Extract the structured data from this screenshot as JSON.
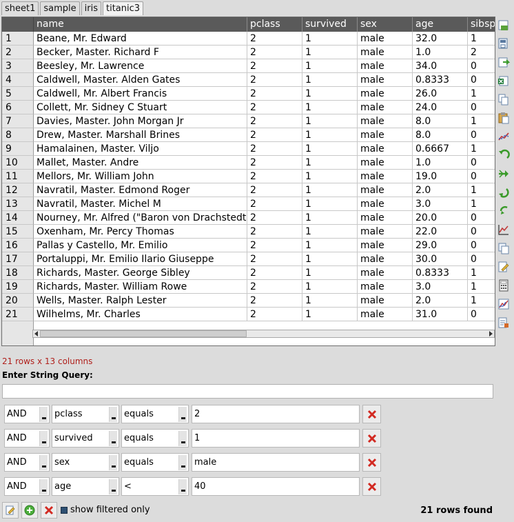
{
  "tabs": [
    "sheet1",
    "sample",
    "iris",
    "titanic3"
  ],
  "active_tab": "titanic3",
  "table": {
    "columns": [
      "name",
      "pclass",
      "survived",
      "sex",
      "age",
      "sibsp"
    ],
    "rows": [
      [
        "1",
        "Beane, Mr. Edward",
        "2",
        "1",
        "male",
        "32.0",
        "1"
      ],
      [
        "2",
        "Becker, Master. Richard F",
        "2",
        "1",
        "male",
        "1.0",
        "2"
      ],
      [
        "3",
        "Beesley, Mr. Lawrence",
        "2",
        "1",
        "male",
        "34.0",
        "0"
      ],
      [
        "4",
        "Caldwell, Master. Alden Gates",
        "2",
        "1",
        "male",
        "0.8333",
        "0"
      ],
      [
        "5",
        "Caldwell, Mr. Albert Francis",
        "2",
        "1",
        "male",
        "26.0",
        "1"
      ],
      [
        "6",
        "Collett, Mr. Sidney C Stuart",
        "2",
        "1",
        "male",
        "24.0",
        "0"
      ],
      [
        "7",
        "Davies, Master. John Morgan Jr",
        "2",
        "1",
        "male",
        "8.0",
        "1"
      ],
      [
        "8",
        "Drew, Master. Marshall Brines",
        "2",
        "1",
        "male",
        "8.0",
        "0"
      ],
      [
        "9",
        "Hamalainen, Master. Viljo",
        "2",
        "1",
        "male",
        "0.6667",
        "1"
      ],
      [
        "10",
        "Mallet, Master. Andre",
        "2",
        "1",
        "male",
        "1.0",
        "0"
      ],
      [
        "11",
        "Mellors, Mr. William John",
        "2",
        "1",
        "male",
        "19.0",
        "0"
      ],
      [
        "12",
        "Navratil, Master. Edmond Roger",
        "2",
        "1",
        "male",
        "2.0",
        "1"
      ],
      [
        "13",
        "Navratil, Master. Michel M",
        "2",
        "1",
        "male",
        "3.0",
        "1"
      ],
      [
        "14",
        "Nourney, Mr. Alfred (\"Baron von Drachstedt\")",
        "2",
        "1",
        "male",
        "20.0",
        "0"
      ],
      [
        "15",
        "Oxenham, Mr. Percy Thomas",
        "2",
        "1",
        "male",
        "22.0",
        "0"
      ],
      [
        "16",
        "Pallas y Castello, Mr. Emilio",
        "2",
        "1",
        "male",
        "29.0",
        "0"
      ],
      [
        "17",
        "Portaluppi, Mr. Emilio Ilario Giuseppe",
        "2",
        "1",
        "male",
        "30.0",
        "0"
      ],
      [
        "18",
        "Richards, Master. George Sibley",
        "2",
        "1",
        "male",
        "0.8333",
        "1"
      ],
      [
        "19",
        "Richards, Master. William Rowe",
        "2",
        "1",
        "male",
        "3.0",
        "1"
      ],
      [
        "20",
        "Wells, Master. Ralph Lester",
        "2",
        "1",
        "male",
        "2.0",
        "1"
      ],
      [
        "21",
        "Wilhelms, Mr. Charles",
        "2",
        "1",
        "male",
        "31.0",
        "0"
      ]
    ]
  },
  "row_info": "21 rows x 13 columns",
  "query_label": "Enter String Query:",
  "query_value": "",
  "filters": [
    {
      "logic": "AND",
      "column": "pclass",
      "op": "equals",
      "value": "2"
    },
    {
      "logic": "AND",
      "column": "survived",
      "op": "equals",
      "value": "1"
    },
    {
      "logic": "AND",
      "column": "sex",
      "op": "equals",
      "value": "male"
    },
    {
      "logic": "AND",
      "column": "age",
      "op": "<",
      "value": "40"
    }
  ],
  "show_filtered_label": "show filtered only",
  "rows_found": "21 rows found",
  "toolbar_icons": [
    "save-icon",
    "save-as-icon",
    "export-icon",
    "excel-icon",
    "copy-icon",
    "paste-icon",
    "chart-icon",
    "undo-icon",
    "redo-icon",
    "rotate-left-icon",
    "rotate-right-icon",
    "trend-icon",
    "duplicate-icon",
    "edit-icon",
    "calculator-icon",
    "graph-icon",
    "report-icon"
  ]
}
